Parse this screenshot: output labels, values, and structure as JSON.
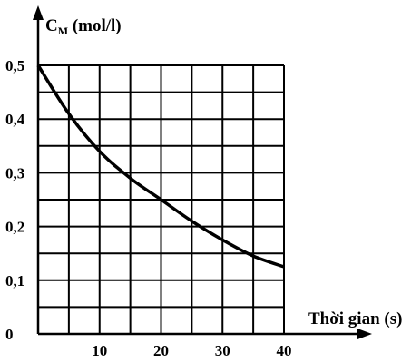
{
  "chart_data": {
    "type": "line",
    "title": "",
    "ylabel_main": "C",
    "ylabel_sub": "M",
    "ylabel_unit": " (mol/l)",
    "xlabel": "Thời gian (s)",
    "xlim": [
      0,
      40
    ],
    "ylim": [
      0,
      0.5
    ],
    "grid": true,
    "x_ticks": [
      "10",
      "20",
      "30",
      "40"
    ],
    "y_ticks": [
      "0",
      "0,1",
      "0,2",
      "0,3",
      "0,4",
      "0,5"
    ],
    "series": [
      {
        "x": [
          0,
          5,
          10,
          15,
          20,
          25,
          30,
          35,
          40
        ],
        "y": [
          0.5,
          0.41,
          0.34,
          0.29,
          0.25,
          0.21,
          0.175,
          0.145,
          0.125
        ]
      }
    ]
  }
}
